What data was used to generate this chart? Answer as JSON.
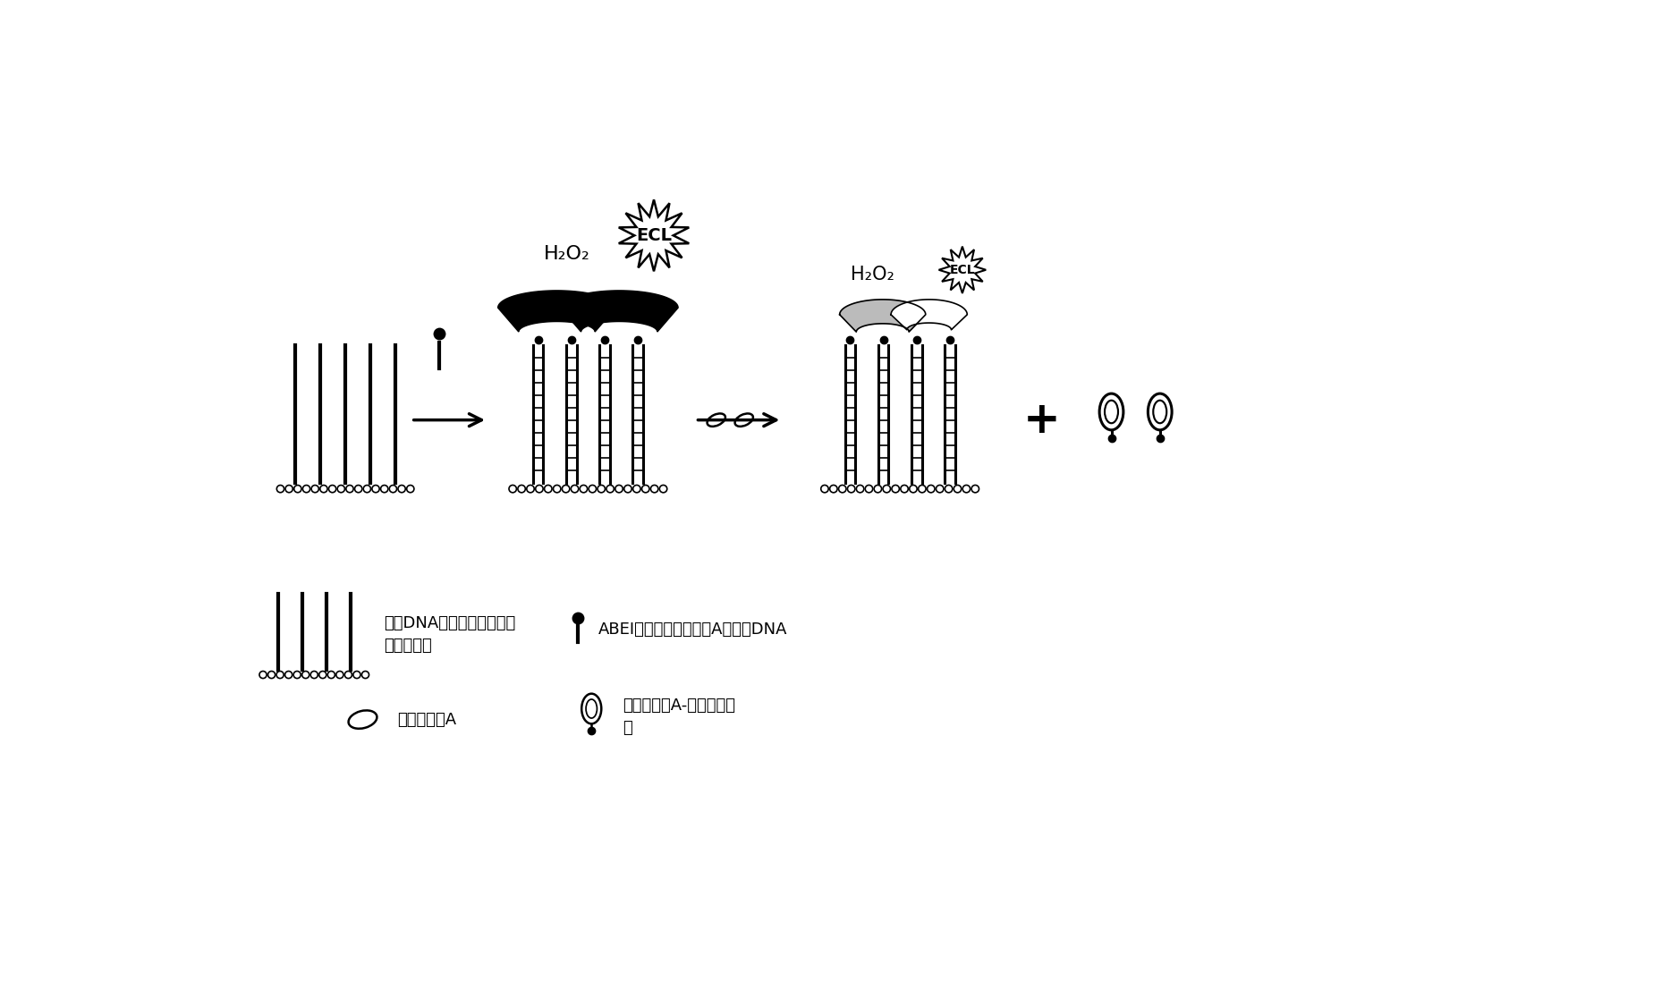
{
  "bg_color": "#ffffff",
  "fig_width": 18.49,
  "fig_height": 11.16,
  "texts": {
    "ecl1": "ECL",
    "ecl2": "ECL",
    "h2o2_1": "H₂O₂",
    "h2o2_2": "H₂O₂",
    "legend1_title": "互补DNA链固定到纳米金修",
    "legend1_line2": "饰的电极上",
    "legend2": "ABEI标记的跃曲霖毒素A适配体DNA",
    "legend3": "跃曲霖毒素A",
    "legend4": "跃曲霖毒素A-适配体复合",
    "legend4_line2": "物",
    "plus": "+"
  }
}
